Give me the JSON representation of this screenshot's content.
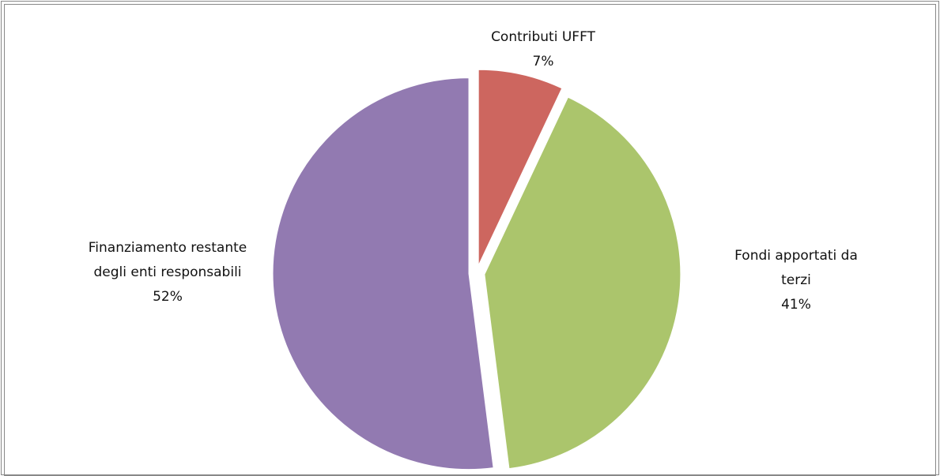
{
  "chart_data": {
    "type": "pie",
    "categories": [
      "Contributi UFFT",
      "Fondi apportati da terzi",
      "Finanziamento restante degli enti responsabili"
    ],
    "values": [
      7,
      41,
      52
    ],
    "value_labels": [
      "7%",
      "41%",
      "52%"
    ],
    "colors": [
      "#cd665f",
      "#abc56c",
      "#927ab1"
    ]
  }
}
